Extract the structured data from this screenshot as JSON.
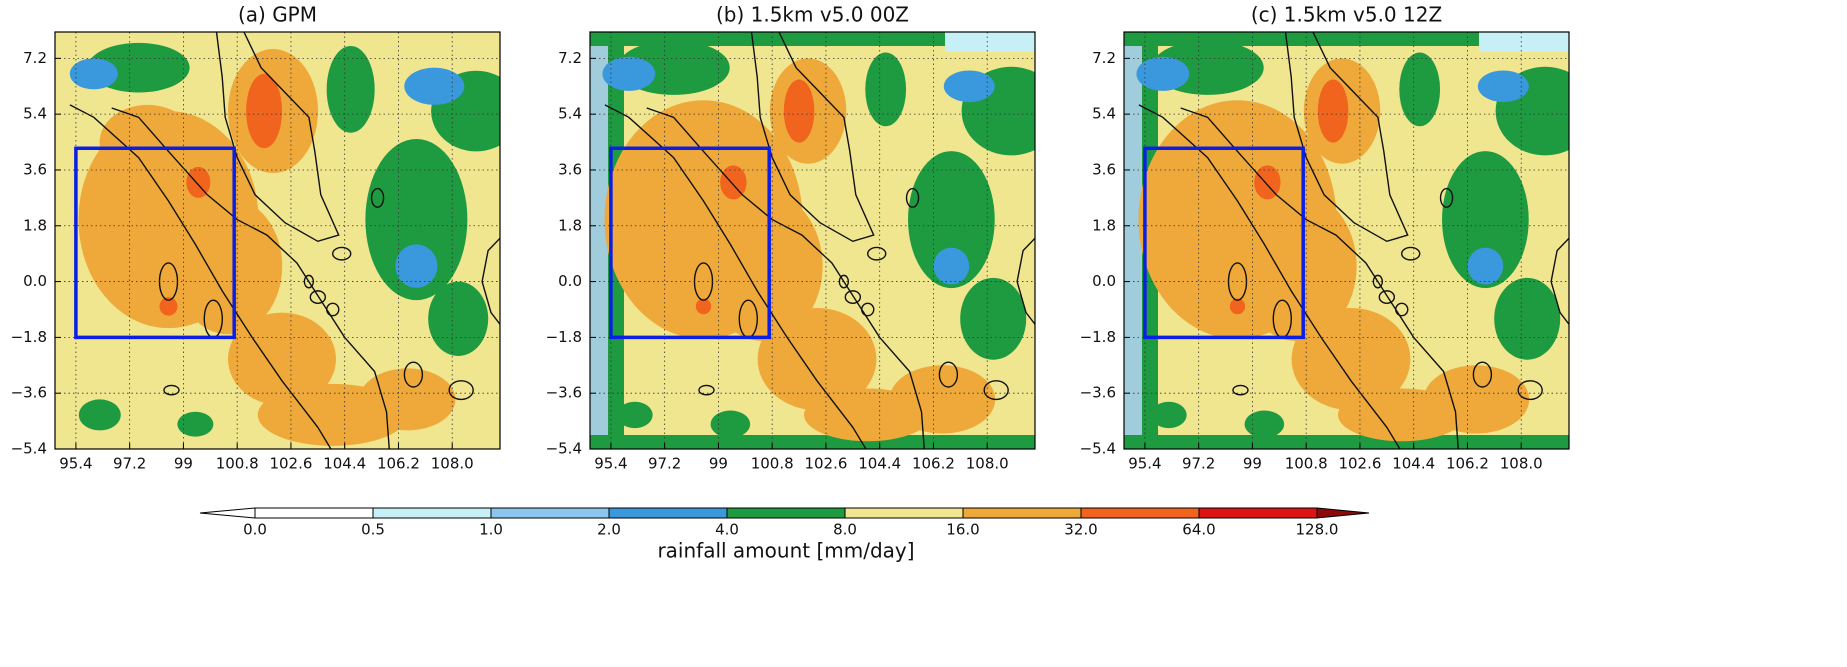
{
  "chart_data": {
    "type": "contour-map",
    "panels": [
      {
        "title": "(a) GPM"
      },
      {
        "title": "(b) 1.5km v5.0 00Z"
      },
      {
        "title": "(c) 1.5km v5.0 12Z"
      }
    ],
    "xlim": [
      94.7,
      109.6
    ],
    "ylim": [
      -5.4,
      8.05
    ],
    "xticks": [
      95.4,
      97.2,
      99.0,
      100.8,
      102.6,
      104.4,
      106.2,
      {
        "value": 108.0,
        "label": "108.0"
      }
    ],
    "yticks": [
      {
        "value": -5.4,
        "label": "−5.4"
      },
      {
        "value": -3.6,
        "label": "−3.6"
      },
      {
        "value": -1.8,
        "label": "−1.8"
      },
      {
        "value": 0.0,
        "label": "0.0"
      },
      1.8,
      3.6,
      5.4,
      7.2
    ],
    "grid": true,
    "box": {
      "lon": [
        95.4,
        100.7
      ],
      "lat": [
        -1.8,
        4.3
      ],
      "color": "#0a1ee6"
    },
    "colorbar": {
      "label": "rainfall amount [mm/day]",
      "ticks": [
        {
          "value": 0.0,
          "label": "0.0"
        },
        0.5,
        {
          "value": 1.0,
          "label": "1.0"
        },
        {
          "value": 2.0,
          "label": "2.0"
        },
        {
          "value": 4.0,
          "label": "4.0"
        },
        {
          "value": 8.0,
          "label": "8.0"
        },
        {
          "value": 16.0,
          "label": "16.0"
        },
        {
          "value": 32.0,
          "label": "32.0"
        },
        {
          "value": 64.0,
          "label": "64.0"
        },
        {
          "value": 128.0,
          "label": "128.0"
        }
      ],
      "colors": [
        "#ffffff",
        "#ffffff",
        "#c6f0f6",
        "#8cc6ee",
        "#3a98dc",
        "#1e9a40",
        "#f0e690",
        "#efa93a",
        "#f0641e",
        "#dc1414",
        "#8c0a0a"
      ]
    }
  }
}
